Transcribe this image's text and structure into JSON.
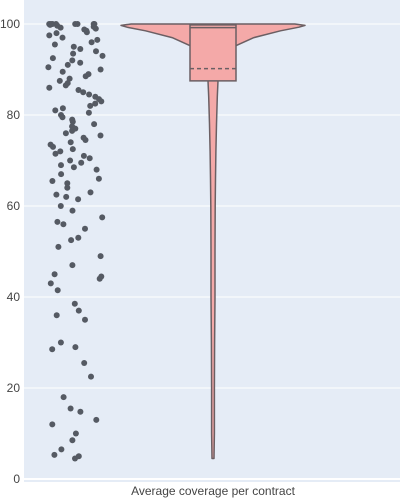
{
  "chart_data": {
    "type": "violin",
    "title": "",
    "xlabel": "Average coverage per contract",
    "ylabel": "",
    "ylim": [
      0,
      104
    ],
    "yticks": [
      0,
      20,
      40,
      60,
      80,
      100
    ],
    "grid": true,
    "legend": "none",
    "colors": {
      "plot_bg": "#E5ECF6",
      "grid": "#FFFFFF",
      "violin_fill": "#F4A9A8",
      "violin_line": "#6B5F63",
      "points": "#555A63"
    },
    "series": [
      {
        "points_y": [
          4.5,
          5,
          5.3,
          6.5,
          8.5,
          10,
          12,
          13,
          14.8,
          15.5,
          18,
          22.5,
          25.5,
          28.5,
          29,
          30,
          35,
          36,
          37,
          38.5,
          41.5,
          43,
          44,
          44.5,
          45,
          47,
          49,
          51,
          52.5,
          53,
          55,
          56,
          56.5,
          57.5,
          59,
          60,
          61.5,
          62,
          62.5,
          63,
          64,
          65,
          65.5,
          66,
          67,
          68,
          68.5,
          69,
          69.5,
          70,
          70.5,
          71,
          71.5,
          72,
          72.5,
          73,
          73.5,
          74,
          74.5,
          75,
          75.5,
          76,
          76.5,
          77,
          77.5,
          78,
          78.5,
          79,
          79.5,
          80,
          80.5,
          81,
          81.5,
          82,
          82.5,
          83,
          83.5,
          84,
          84.5,
          85,
          85.5,
          86,
          86.5,
          87,
          87.5,
          88,
          88.5,
          89,
          89.5,
          90,
          90.5,
          91,
          91.5,
          92,
          92.5,
          93,
          93.5,
          94,
          94.5,
          95,
          95.5,
          96,
          96.5,
          97,
          97.5,
          98,
          98.2,
          98.5,
          98.8,
          99,
          99.2,
          99.4,
          99.6,
          99.8,
          100,
          100,
          100,
          100,
          100,
          100,
          100,
          100
        ],
        "box": {
          "q1": 87.5,
          "median": 99.2,
          "q3": 99.8,
          "mean": 90.2,
          "min": 4.5,
          "max": 100
        },
        "density": [
          {
            "y": 4.5,
            "w": 0.005
          },
          {
            "y": 10,
            "w": 0.007
          },
          {
            "y": 20,
            "w": 0.007
          },
          {
            "y": 30,
            "w": 0.008
          },
          {
            "y": 40,
            "w": 0.01
          },
          {
            "y": 50,
            "w": 0.01
          },
          {
            "y": 60,
            "w": 0.011
          },
          {
            "y": 66,
            "w": 0.012
          },
          {
            "y": 72,
            "w": 0.014
          },
          {
            "y": 78,
            "w": 0.017
          },
          {
            "y": 84,
            "w": 0.021
          },
          {
            "y": 88,
            "w": 0.025
          },
          {
            "y": 91,
            "w": 0.035
          },
          {
            "y": 93,
            "w": 0.055
          },
          {
            "y": 95,
            "w": 0.1
          },
          {
            "y": 97,
            "w": 0.2
          },
          {
            "y": 98.5,
            "w": 0.33
          },
          {
            "y": 99.3,
            "w": 0.42
          },
          {
            "y": 99.7,
            "w": 0.45
          },
          {
            "y": 100,
            "w": 0.4
          }
        ]
      }
    ]
  }
}
